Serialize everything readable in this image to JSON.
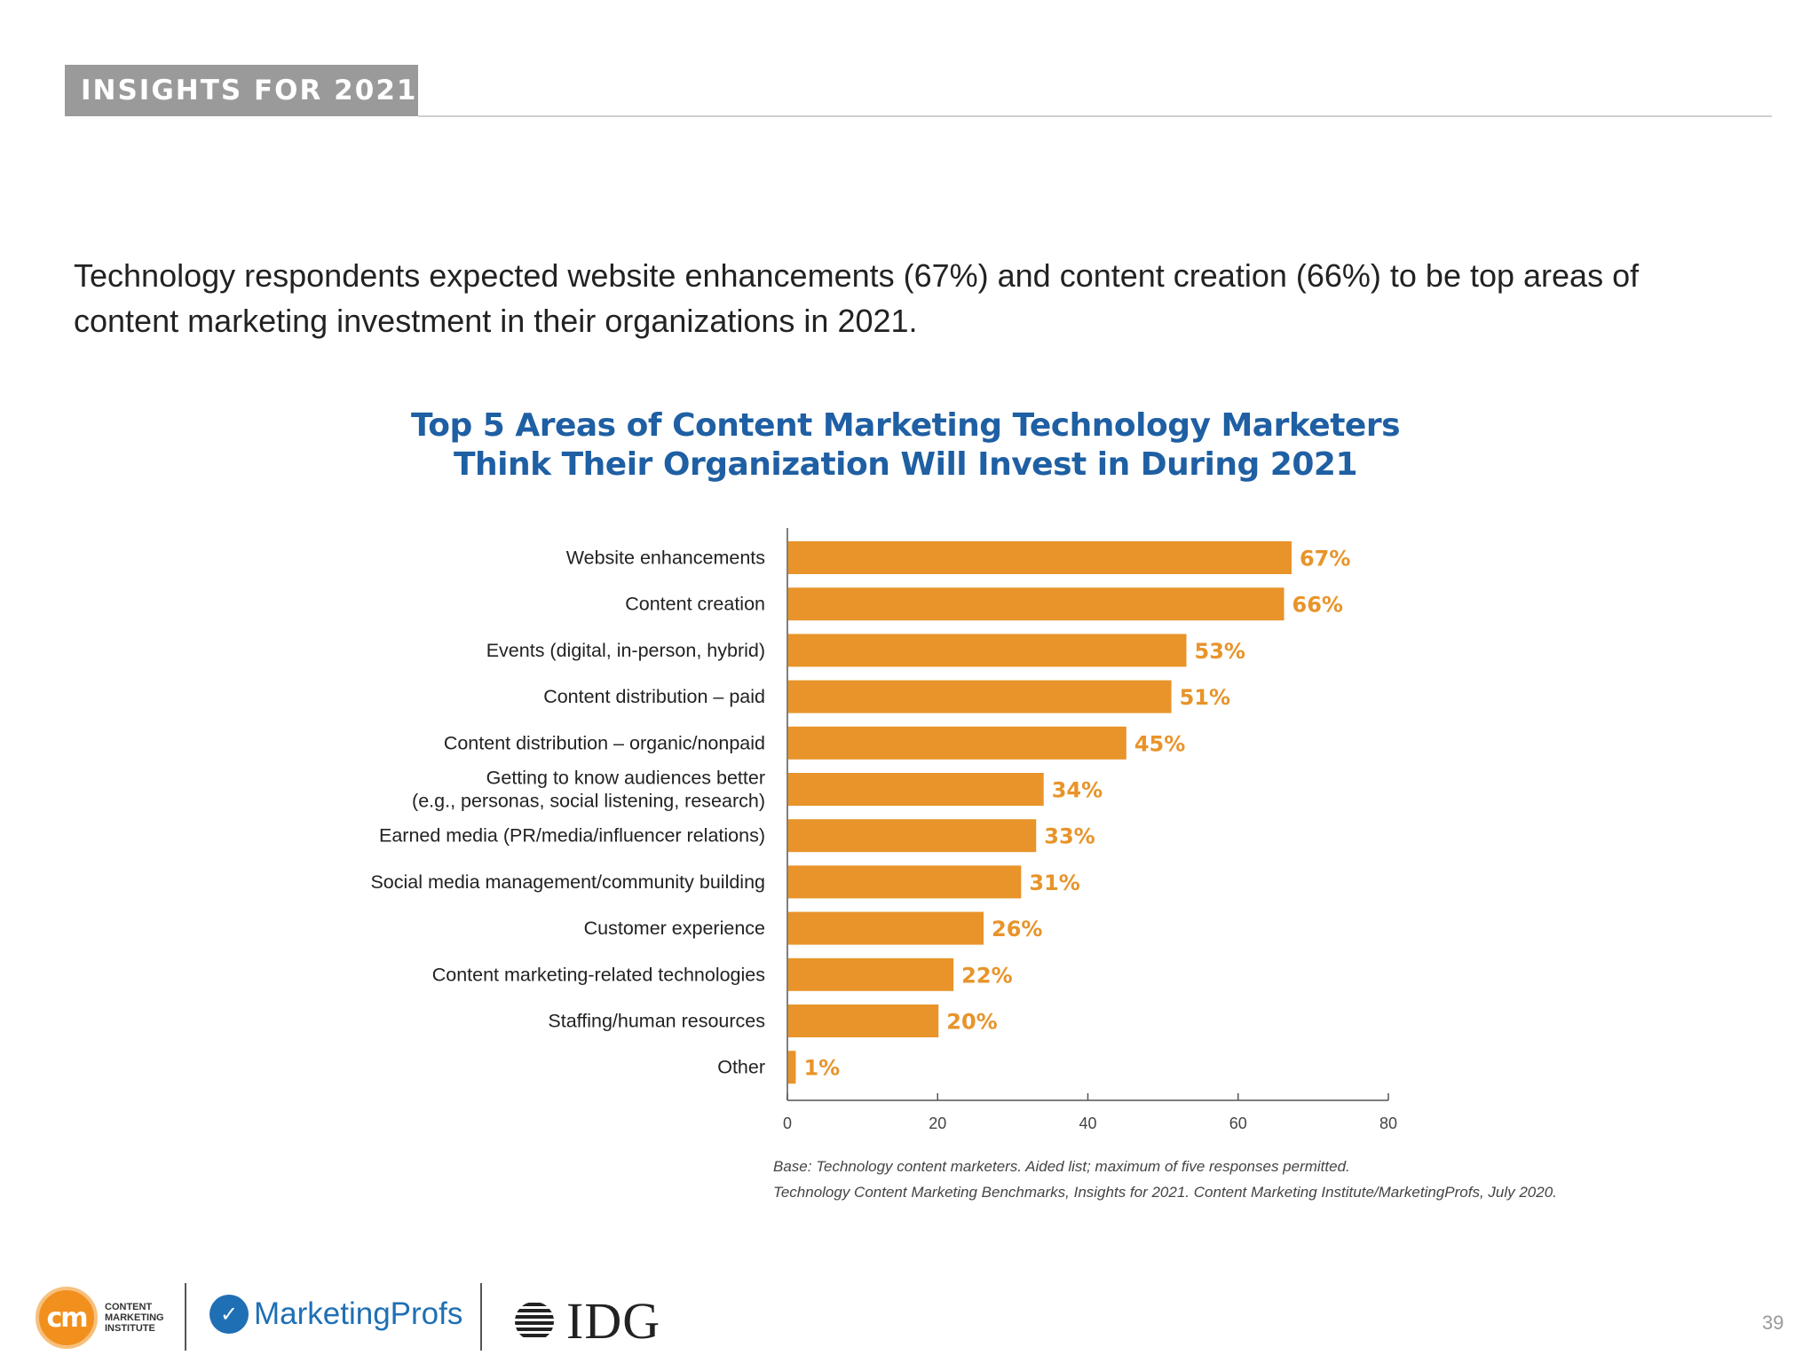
{
  "header": {
    "tag": "INSIGHTS FOR 2021"
  },
  "intro": {
    "line1": "Technology respondents expected website enhancements (67%) and content creation (66%) to be top areas of",
    "line2": "content marketing investment in their organizations in 2021."
  },
  "footnote": {
    "line1": "Base: Technology content marketers. Aided list; maximum of five responses permitted.",
    "line2": "Technology Content Marketing Benchmarks, Insights for 2021. Content Marketing Institute/MarketingProfs, July 2020."
  },
  "page_number": "39",
  "logos": {
    "cmi_mark": "cm",
    "cmi_line1": "CONTENT",
    "cmi_line2": "MARKETING",
    "cmi_line3": "INSTITUTE",
    "mp_name": "MarketingProfs",
    "idg_name": "IDG"
  },
  "chart_data": {
    "type": "bar",
    "orientation": "horizontal",
    "title_line1": "Top 5 Areas of Content Marketing Technology Marketers",
    "title_line2": "Think Their Organization Will Invest in During 2021",
    "categories": [
      [
        "Website enhancements"
      ],
      [
        "Content creation"
      ],
      [
        "Events (digital, in-person, hybrid)"
      ],
      [
        "Content distribution – paid"
      ],
      [
        "Content distribution – organic/nonpaid"
      ],
      [
        "Getting to know audiences better",
        "(e.g., personas, social listening, research)"
      ],
      [
        "Earned media (PR/media/influencer relations)"
      ],
      [
        "Social media management/community building"
      ],
      [
        "Customer experience"
      ],
      [
        "Content marketing-related technologies"
      ],
      [
        "Staffing/human resources"
      ],
      [
        "Other"
      ]
    ],
    "values": [
      67,
      66,
      53,
      51,
      45,
      34,
      33,
      31,
      26,
      22,
      20,
      1
    ],
    "value_suffix": "%",
    "xlim": [
      0,
      80
    ],
    "xticks": [
      0,
      20,
      40,
      60,
      80
    ],
    "bar_color": "#e8942a",
    "label_color": "#e8942a",
    "grid": false
  }
}
